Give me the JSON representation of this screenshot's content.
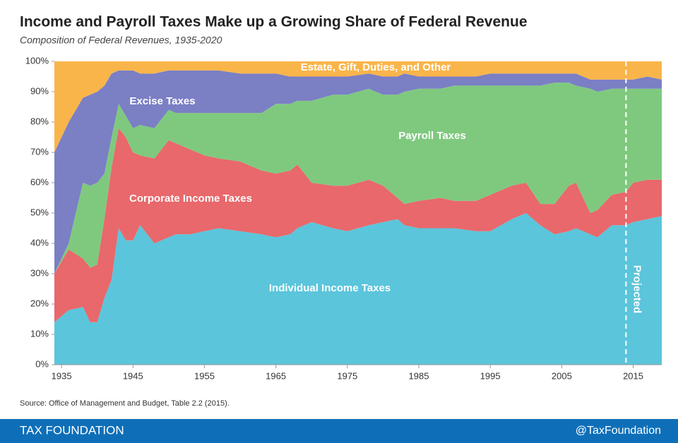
{
  "chart_data": {
    "type": "stacked-area",
    "title": "Income and Payroll Taxes Make up a Growing Share of Federal Revenue",
    "subtitle": "Composition of Federal Revenues, 1935-2020",
    "x": [
      1934,
      1936,
      1938,
      1939,
      1940,
      1941,
      1942,
      1943,
      1944,
      1945,
      1946,
      1948,
      1950,
      1951,
      1953,
      1955,
      1957,
      1960,
      1963,
      1965,
      1967,
      1968,
      1970,
      1973,
      1975,
      1978,
      1980,
      1982,
      1983,
      1985,
      1988,
      1990,
      1993,
      1995,
      1998,
      2000,
      2002,
      2004,
      2006,
      2007,
      2009,
      2010,
      2012,
      2014,
      2015,
      2017,
      2019
    ],
    "series": [
      {
        "name": "Individual Income Taxes",
        "color": "#5bc5db",
        "values": [
          14,
          18,
          19,
          14,
          14,
          22,
          28,
          45,
          41,
          41,
          46,
          40,
          42,
          43,
          43,
          44,
          45,
          44,
          43,
          42,
          43,
          45,
          47,
          45,
          44,
          46,
          47,
          48,
          46,
          45,
          45,
          45,
          44,
          44,
          48,
          50,
          46,
          43,
          44,
          45,
          43,
          42,
          46,
          46,
          47,
          48,
          49
        ]
      },
      {
        "name": "Corporate Income Taxes",
        "color": "#e8686b",
        "values": [
          16,
          20,
          16,
          18,
          19,
          26,
          37,
          33,
          34,
          29,
          23,
          28,
          32,
          30,
          28,
          25,
          23,
          23,
          21,
          21,
          21,
          21,
          13,
          14,
          15,
          15,
          12,
          7,
          7,
          9,
          10,
          9,
          10,
          12,
          11,
          10,
          7,
          10,
          15,
          15,
          7,
          9,
          10,
          11,
          13,
          13,
          12
        ]
      },
      {
        "name": "Payroll Taxes",
        "color": "#7fc97f",
        "values": [
          0,
          2,
          25,
          27,
          27,
          15,
          10,
          8,
          7,
          8,
          10,
          10,
          10,
          10,
          12,
          14,
          15,
          16,
          19,
          23,
          22,
          21,
          27,
          30,
          30,
          30,
          30,
          34,
          37,
          37,
          36,
          38,
          38,
          36,
          33,
          32,
          39,
          40,
          34,
          32,
          41,
          39,
          35,
          34,
          31,
          30,
          30
        ]
      },
      {
        "name": "Excise Taxes",
        "color": "#7b7fc4",
        "values": [
          40,
          40,
          28,
          30,
          30,
          29,
          21,
          11,
          15,
          19,
          17,
          18,
          13,
          14,
          14,
          14,
          14,
          13,
          13,
          10,
          9,
          8,
          8,
          6,
          6,
          5,
          6,
          6,
          6,
          4,
          4,
          3,
          3,
          4,
          4,
          4,
          4,
          3,
          3,
          4,
          3,
          4,
          3,
          3,
          3,
          4,
          3
        ]
      },
      {
        "name": "Estate, Gift, Duties, and Other",
        "color": "#f9b54a",
        "values": [
          30,
          20,
          12,
          11,
          10,
          8,
          4,
          3,
          3,
          3,
          4,
          4,
          3,
          3,
          3,
          3,
          3,
          4,
          4,
          4,
          5,
          5,
          5,
          5,
          5,
          4,
          5,
          5,
          4,
          5,
          5,
          5,
          5,
          4,
          4,
          4,
          4,
          4,
          4,
          4,
          6,
          6,
          6,
          6,
          6,
          5,
          6
        ]
      }
    ],
    "xlim": [
      1934,
      2019
    ],
    "ylim": [
      0,
      100
    ],
    "xticks": [
      1935,
      1945,
      1955,
      1965,
      1975,
      1985,
      1995,
      2005,
      2015
    ],
    "yticks": [
      {
        "value": 0,
        "label": "0%"
      },
      {
        "value": 10,
        "label": "10%"
      },
      {
        "value": 20,
        "label": "20%"
      },
      {
        "value": 30,
        "label": "30%"
      },
      {
        "value": 40,
        "label": "40%"
      },
      {
        "value": 50,
        "label": "50%"
      },
      {
        "value": 60,
        "label": "60%"
      },
      {
        "value": 70,
        "label": "70%"
      },
      {
        "value": 80,
        "label": "80%"
      },
      {
        "value": 90,
        "label": "90%"
      },
      {
        "value": 100,
        "label": "100%"
      }
    ],
    "projected_from": 2014,
    "projected_label": "Projected",
    "source": "Source: Office of Management and Budget, Table 2.2 (2015).",
    "footer_left": "TAX FOUNDATION",
    "footer_right": "@TaxFoundation"
  }
}
